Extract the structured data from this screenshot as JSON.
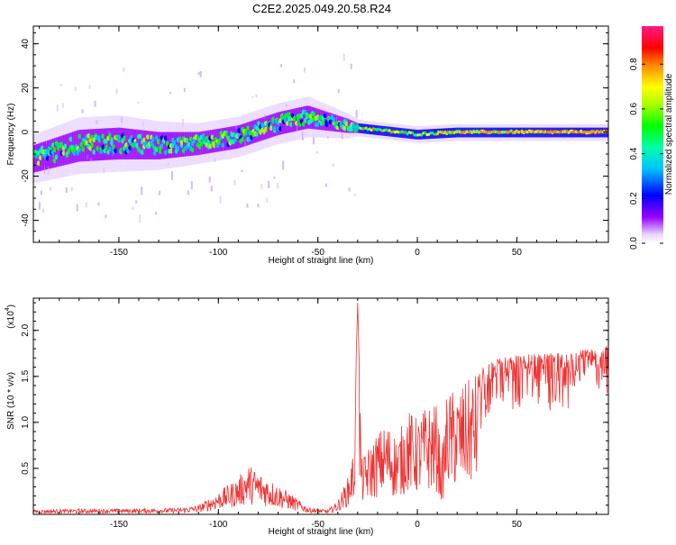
{
  "title": "C2E2.2025.049.20.58.R24",
  "chart_data": [
    {
      "type": "heatmap",
      "xlabel": "Height of straight line (km)",
      "ylabel": "Frequency (Hz)",
      "xlim": [
        -193,
        96
      ],
      "ylim": [
        -50,
        48
      ],
      "x_ticks": [
        -150,
        -100,
        -50,
        0,
        50
      ],
      "y_ticks": [
        -40,
        -20,
        0,
        20,
        40
      ],
      "x_tick_labels": [
        "-150",
        "-100",
        "-50",
        "0",
        "50"
      ],
      "y_tick_labels": [
        "-40",
        "-20",
        "0",
        "20",
        "40"
      ],
      "colorbar": {
        "label": "Normalized spectral amplitude",
        "range": [
          0,
          0.97
        ],
        "ticks": [
          0.0,
          0.2,
          0.4,
          0.6,
          0.8
        ],
        "tick_labels": [
          "0.0",
          "0.2",
          "0.4",
          "0.6",
          "0.8"
        ]
      },
      "ridge": {
        "x": [
          -193,
          -170,
          -150,
          -130,
          -110,
          -90,
          -70,
          -55,
          -45,
          -35,
          -30,
          -20,
          -10,
          0,
          20,
          50,
          80,
          96
        ],
        "frequency": [
          -12,
          -6,
          -5,
          -6,
          -5,
          -2,
          4,
          7,
          5,
          3,
          2,
          1,
          0,
          -1,
          0,
          0,
          0,
          0
        ],
        "spread": [
          6,
          7,
          7,
          6,
          5,
          5,
          5,
          5,
          4,
          3,
          2,
          2,
          2,
          2,
          2,
          2,
          2,
          2
        ]
      }
    },
    {
      "type": "line",
      "xlabel": "Height of straight line (km)",
      "ylabel": "SNR (10 * v/v)",
      "y_scale_label": "(x10",
      "y_scale_exp": "4",
      "xlim": [
        -193,
        96
      ],
      "ylim": [
        0,
        2.35
      ],
      "x_ticks": [
        -150,
        -100,
        -50,
        0,
        50
      ],
      "y_ticks": [
        0.5,
        1.0,
        1.5,
        2.0
      ],
      "x_tick_labels": [
        "-150",
        "-100",
        "-50",
        "0",
        "50"
      ],
      "y_tick_labels": [
        "0.5",
        "1.0",
        "1.5",
        "2.0"
      ],
      "line_color": "#ee3333",
      "series": [
        {
          "envelope_x": [
            -193,
            -170,
            -150,
            -120,
            -110,
            -100,
            -90,
            -85,
            -75,
            -65,
            -55,
            -45,
            -40,
            -35,
            -32,
            -30,
            -28,
            -20,
            -15,
            -10,
            -5,
            0,
            5,
            10,
            12,
            15,
            20,
            30,
            40,
            50,
            60,
            70,
            80,
            90,
            96
          ],
          "envelope_y": [
            0.05,
            0.06,
            0.06,
            0.07,
            0.1,
            0.25,
            0.4,
            0.55,
            0.4,
            0.25,
            0.08,
            0.05,
            0.15,
            0.4,
            0.7,
            2.3,
            0.6,
            0.9,
            1.0,
            0.85,
            1.15,
            1.05,
            1.2,
            1.2,
            0.6,
            1.35,
            1.35,
            1.55,
            1.7,
            1.75,
            1.75,
            1.75,
            1.78,
            1.8,
            1.85
          ]
        }
      ]
    }
  ]
}
